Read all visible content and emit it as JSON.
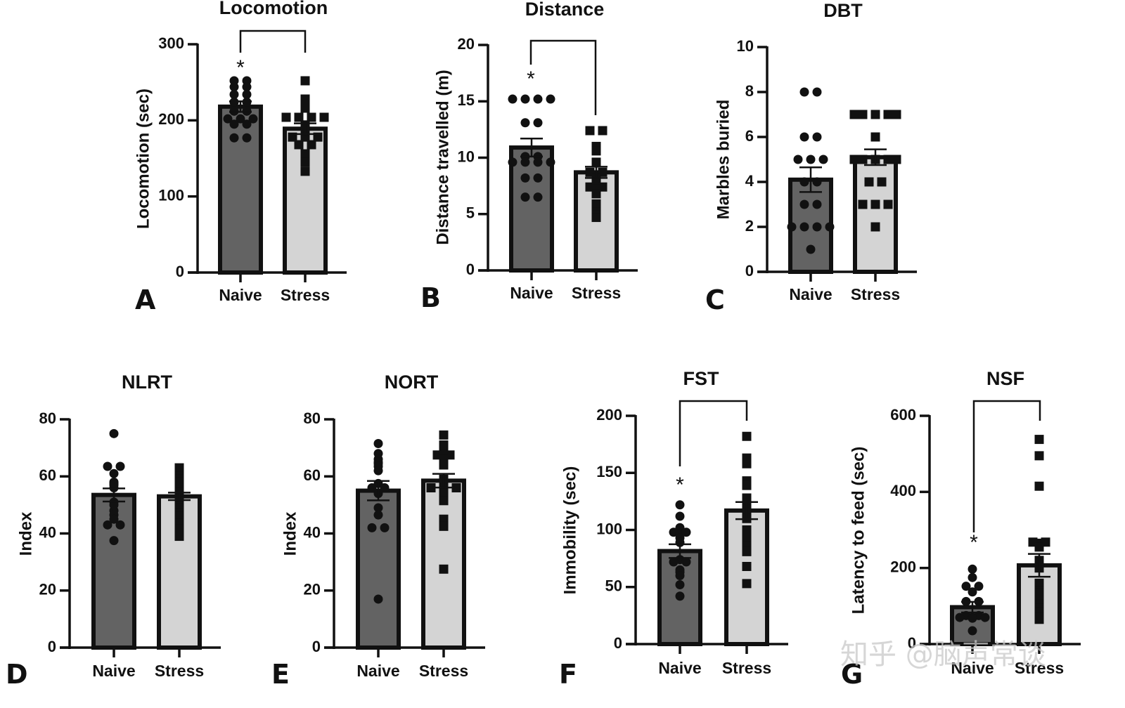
{
  "figure": {
    "watermark": "知乎 @脑声常谈"
  },
  "chart_data": [
    {
      "panel": "A",
      "type": "bar",
      "title": "Locomotion",
      "ylabel": "Locomotion (sec)",
      "xlabel": "",
      "categories": [
        "Naive",
        "Stress"
      ],
      "ylim": [
        0,
        300
      ],
      "yticks": [
        0,
        100,
        200,
        300
      ],
      "colors": [
        "#636363",
        "#d4d4d4"
      ],
      "marker": [
        "circle",
        "square"
      ],
      "series": [
        {
          "name": "Naive",
          "mean": 218,
          "sem": 7,
          "points": [
            252,
            252,
            244,
            244,
            234,
            234,
            224,
            224,
            212,
            212,
            202,
            202,
            202,
            195,
            195,
            177,
            177
          ]
        },
        {
          "name": "Stress",
          "mean": 189,
          "sem": 7,
          "points": [
            252,
            228,
            225,
            216,
            204,
            204,
            204,
            204,
            194,
            186,
            178,
            178,
            178,
            168,
            168,
            156,
            152,
            145,
            133
          ]
        }
      ],
      "significance": {
        "groups": [
          "Naive",
          "Stress"
        ],
        "marker": "*"
      }
    },
    {
      "panel": "B",
      "type": "bar",
      "title": "Distance",
      "ylabel": "Distance travelled (m)",
      "xlabel": "",
      "categories": [
        "Naive",
        "Stress"
      ],
      "ylim": [
        0,
        20
      ],
      "yticks": [
        0,
        5,
        10,
        15,
        20
      ],
      "colors": [
        "#636363",
        "#d4d4d4"
      ],
      "marker": [
        "circle",
        "square"
      ],
      "series": [
        {
          "name": "Naive",
          "mean": 10.9,
          "sem": 0.8,
          "points": [
            15.2,
            15.2,
            15.2,
            15.2,
            13.1,
            13.1,
            10.1,
            10.1,
            9.6,
            9.6,
            9.6,
            9.6,
            8.2,
            8.2,
            6.5,
            6.5
          ]
        },
        {
          "name": "Stress",
          "mean": 8.7,
          "sem": 0.5,
          "points": [
            12.4,
            12.4,
            11.0,
            10.6,
            9.6,
            8.7,
            8.7,
            8.2,
            8.0,
            7.8,
            7.4,
            7.4,
            7.2,
            6.8,
            5.9,
            5.2,
            4.9,
            4.7
          ]
        }
      ],
      "significance": {
        "groups": [
          "Naive",
          "Stress"
        ],
        "marker": "*"
      }
    },
    {
      "panel": "C",
      "type": "bar",
      "title": "DBT",
      "ylabel": "Marbles buried",
      "xlabel": "",
      "categories": [
        "Naive",
        "Stress"
      ],
      "ylim": [
        0,
        10
      ],
      "yticks": [
        0,
        2,
        4,
        6,
        8,
        10
      ],
      "colors": [
        "#636363",
        "#d4d4d4"
      ],
      "marker": [
        "circle",
        "square"
      ],
      "series": [
        {
          "name": "Naive",
          "mean": 4.1,
          "sem": 0.55,
          "points": [
            8,
            8,
            6,
            6,
            5,
            5,
            5,
            4,
            4,
            3,
            3,
            2,
            2,
            2,
            2,
            1
          ]
        },
        {
          "name": "Stress",
          "mean": 5.1,
          "sem": 0.35,
          "points": [
            7,
            7,
            7,
            7,
            7,
            7,
            7,
            6,
            5,
            5,
            5,
            5,
            5,
            4,
            4,
            3,
            3,
            3,
            2
          ]
        }
      ],
      "significance": null
    },
    {
      "panel": "D",
      "type": "bar",
      "title": "NLRT",
      "ylabel": "Index",
      "xlabel": "",
      "categories": [
        "Naive",
        "Stress"
      ],
      "ylim": [
        0,
        80
      ],
      "yticks": [
        0,
        20,
        40,
        60,
        80
      ],
      "colors": [
        "#636363",
        "#d4d4d4"
      ],
      "marker": [
        "circle",
        "square"
      ],
      "series": [
        {
          "name": "Naive",
          "mean": 53.5,
          "sem": 2.3,
          "points": [
            75,
            63.5,
            63.5,
            61,
            57.5,
            58,
            56,
            57,
            51,
            48,
            50,
            46.5,
            45,
            43,
            43,
            37.5
          ]
        },
        {
          "name": "Stress",
          "mean": 53,
          "sem": 1.3,
          "points": [
            63,
            60,
            59,
            58,
            55.5,
            54.5,
            53.5,
            53,
            52,
            51.5,
            50.5,
            50,
            49,
            47.5,
            47,
            46,
            43.5,
            41.5,
            39
          ]
        }
      ],
      "significance": null
    },
    {
      "panel": "E",
      "type": "bar",
      "title": "NORT",
      "ylabel": "Index",
      "xlabel": "",
      "categories": [
        "Naive",
        "Stress"
      ],
      "ylim": [
        0,
        80
      ],
      "yticks": [
        0,
        20,
        40,
        60,
        80
      ],
      "colors": [
        "#636363",
        "#d4d4d4"
      ],
      "marker": [
        "circle",
        "square"
      ],
      "series": [
        {
          "name": "Naive",
          "mean": 55,
          "sem": 3.4,
          "points": [
            71.5,
            68,
            66,
            65,
            64.5,
            63.5,
            62,
            57.5,
            56,
            56,
            54,
            49,
            46.5,
            42,
            42,
            17
          ]
        },
        {
          "name": "Stress",
          "mean": 58.5,
          "sem": 2.4,
          "points": [
            74.5,
            71,
            68,
            67.5,
            67.5,
            67,
            66,
            64.5,
            64,
            59,
            57,
            56,
            56,
            56,
            55,
            54.5,
            51.5,
            45,
            42.5,
            27.5
          ]
        }
      ],
      "significance": null
    },
    {
      "panel": "F",
      "type": "bar",
      "title": "FST",
      "ylabel": "Immobility (sec)",
      "xlabel": "",
      "categories": [
        "Naive",
        "Stress"
      ],
      "ylim": [
        0,
        200
      ],
      "yticks": [
        0,
        50,
        100,
        150,
        200
      ],
      "colors": [
        "#636363",
        "#d4d4d4"
      ],
      "marker": [
        "circle",
        "square"
      ],
      "series": [
        {
          "name": "Naive",
          "mean": 81.5,
          "sem": 6,
          "points": [
            122,
            112,
            102,
            98,
            97,
            98,
            93,
            89,
            74,
            72,
            72,
            65,
            63,
            60,
            52,
            42
          ]
        },
        {
          "name": "Stress",
          "mean": 117,
          "sem": 7.5,
          "points": [
            182,
            163,
            158,
            143,
            140,
            139,
            128,
            123,
            119,
            118,
            116,
            110,
            100,
            92,
            86,
            84,
            81,
            68,
            53
          ]
        }
      ],
      "significance": {
        "groups": [
          "Naive",
          "Stress"
        ],
        "marker": "*"
      }
    },
    {
      "panel": "G",
      "type": "bar",
      "title": "NSF",
      "ylabel": "Latency to feed (sec)",
      "xlabel": "",
      "categories": [
        "Naive",
        "Stress"
      ],
      "ylim": [
        0,
        600
      ],
      "yticks": [
        0,
        200,
        400,
        600
      ],
      "colors": [
        "#636363",
        "#d4d4d4"
      ],
      "marker": [
        "circle",
        "square"
      ],
      "series": [
        {
          "name": "Naive",
          "mean": 97,
          "sem": 14,
          "points": [
            197,
            175,
            152,
            152,
            137,
            112,
            112,
            75,
            75,
            70,
            70,
            70,
            68,
            35
          ]
        },
        {
          "name": "Stress",
          "mean": 207,
          "sem": 30,
          "points": [
            538,
            495,
            415,
            268,
            265,
            268,
            255,
            220,
            200,
            160,
            140,
            135,
            120,
            115,
            105,
            95,
            85,
            70,
            65
          ]
        }
      ],
      "significance": {
        "groups": [
          "Naive",
          "Stress"
        ],
        "marker": "*"
      }
    }
  ]
}
